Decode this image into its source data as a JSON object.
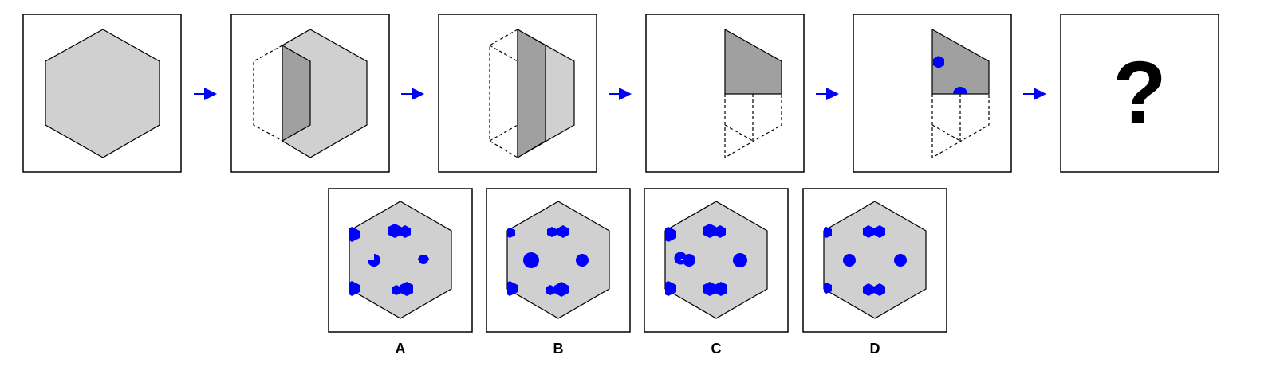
{
  "puzzle": {
    "question_mark": "?",
    "options": [
      {
        "label": "A"
      },
      {
        "label": "B"
      },
      {
        "label": "C"
      },
      {
        "label": "D"
      }
    ]
  },
  "colors": {
    "fill_light": "#d0d0d0",
    "fill_dark": "#a0a0a0",
    "hole": "#0000ff",
    "arrow": "#0000ff",
    "stroke": "#000000"
  }
}
